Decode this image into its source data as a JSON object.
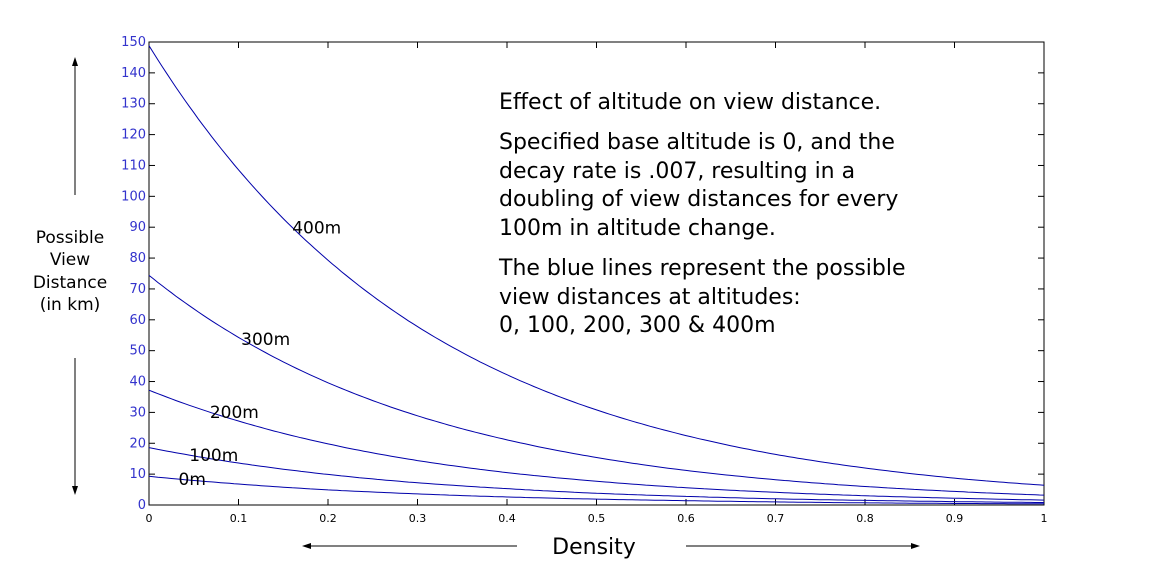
{
  "chart_data": {
    "type": "line",
    "xlabel": "Density",
    "ylabel_lines": [
      "Possible",
      "View",
      "Distance",
      "(in km)"
    ],
    "xlim": [
      0,
      1
    ],
    "ylim": [
      0,
      150
    ],
    "x_ticks": [
      "0",
      "0.1",
      "0.2",
      "0.3",
      "0.4",
      "0.5",
      "0.6",
      "0.7",
      "0.8",
      "0.9",
      "1"
    ],
    "y_ticks": [
      "0",
      "10",
      "20",
      "30",
      "40",
      "50",
      "60",
      "70",
      "80",
      "90",
      "100",
      "110",
      "120",
      "130",
      "140",
      "150"
    ],
    "grid": false,
    "line_color": "#0000aa",
    "tick_color": "#3333cc",
    "series": [
      {
        "name": "0m",
        "x": [
          0,
          0.1,
          0.2,
          0.3,
          0.4,
          0.5,
          0.6,
          0.7,
          0.8,
          0.9,
          1.0
        ],
        "values": [
          9.3,
          6.8,
          4.9,
          3.6,
          2.6,
          1.9,
          1.4,
          1.0,
          0.7,
          0.5,
          0.4
        ]
      },
      {
        "name": "100m",
        "x": [
          0,
          0.1,
          0.2,
          0.3,
          0.4,
          0.5,
          0.6,
          0.7,
          0.8,
          0.9,
          1.0
        ],
        "values": [
          18.6,
          13.6,
          9.9,
          7.2,
          5.3,
          3.8,
          2.8,
          2.0,
          1.5,
          1.1,
          0.8
        ]
      },
      {
        "name": "200m",
        "x": [
          0,
          0.1,
          0.2,
          0.3,
          0.4,
          0.5,
          0.6,
          0.7,
          0.8,
          0.9,
          1.0
        ],
        "values": [
          37.2,
          27.2,
          19.8,
          14.4,
          10.5,
          7.7,
          5.6,
          4.1,
          3.0,
          2.2,
          1.6
        ]
      },
      {
        "name": "300m",
        "x": [
          0,
          0.1,
          0.2,
          0.3,
          0.4,
          0.5,
          0.6,
          0.7,
          0.8,
          0.9,
          1.0
        ],
        "values": [
          74.4,
          54.3,
          39.6,
          28.9,
          21.1,
          15.4,
          11.2,
          8.2,
          6.0,
          4.4,
          3.2
        ]
      },
      {
        "name": "400m",
        "x": [
          0,
          0.1,
          0.2,
          0.3,
          0.4,
          0.5,
          0.6,
          0.7,
          0.8,
          0.9,
          1.0
        ],
        "values": [
          148.8,
          108.6,
          79.3,
          57.8,
          42.2,
          30.8,
          22.5,
          16.4,
          12.0,
          8.7,
          6.4
        ]
      }
    ],
    "annotations": {
      "title": "Effect of altitude on view distance.",
      "paragraph1": [
        "Specified base altitude is 0, and the",
        "decay rate is .007, resulting in a",
        "doubling of view distances for every",
        "100m in altitude change."
      ],
      "paragraph2": [
        "The blue lines represent the possible",
        "view distances at altitudes:",
        "0, 100, 200, 300 & 400m"
      ]
    }
  }
}
